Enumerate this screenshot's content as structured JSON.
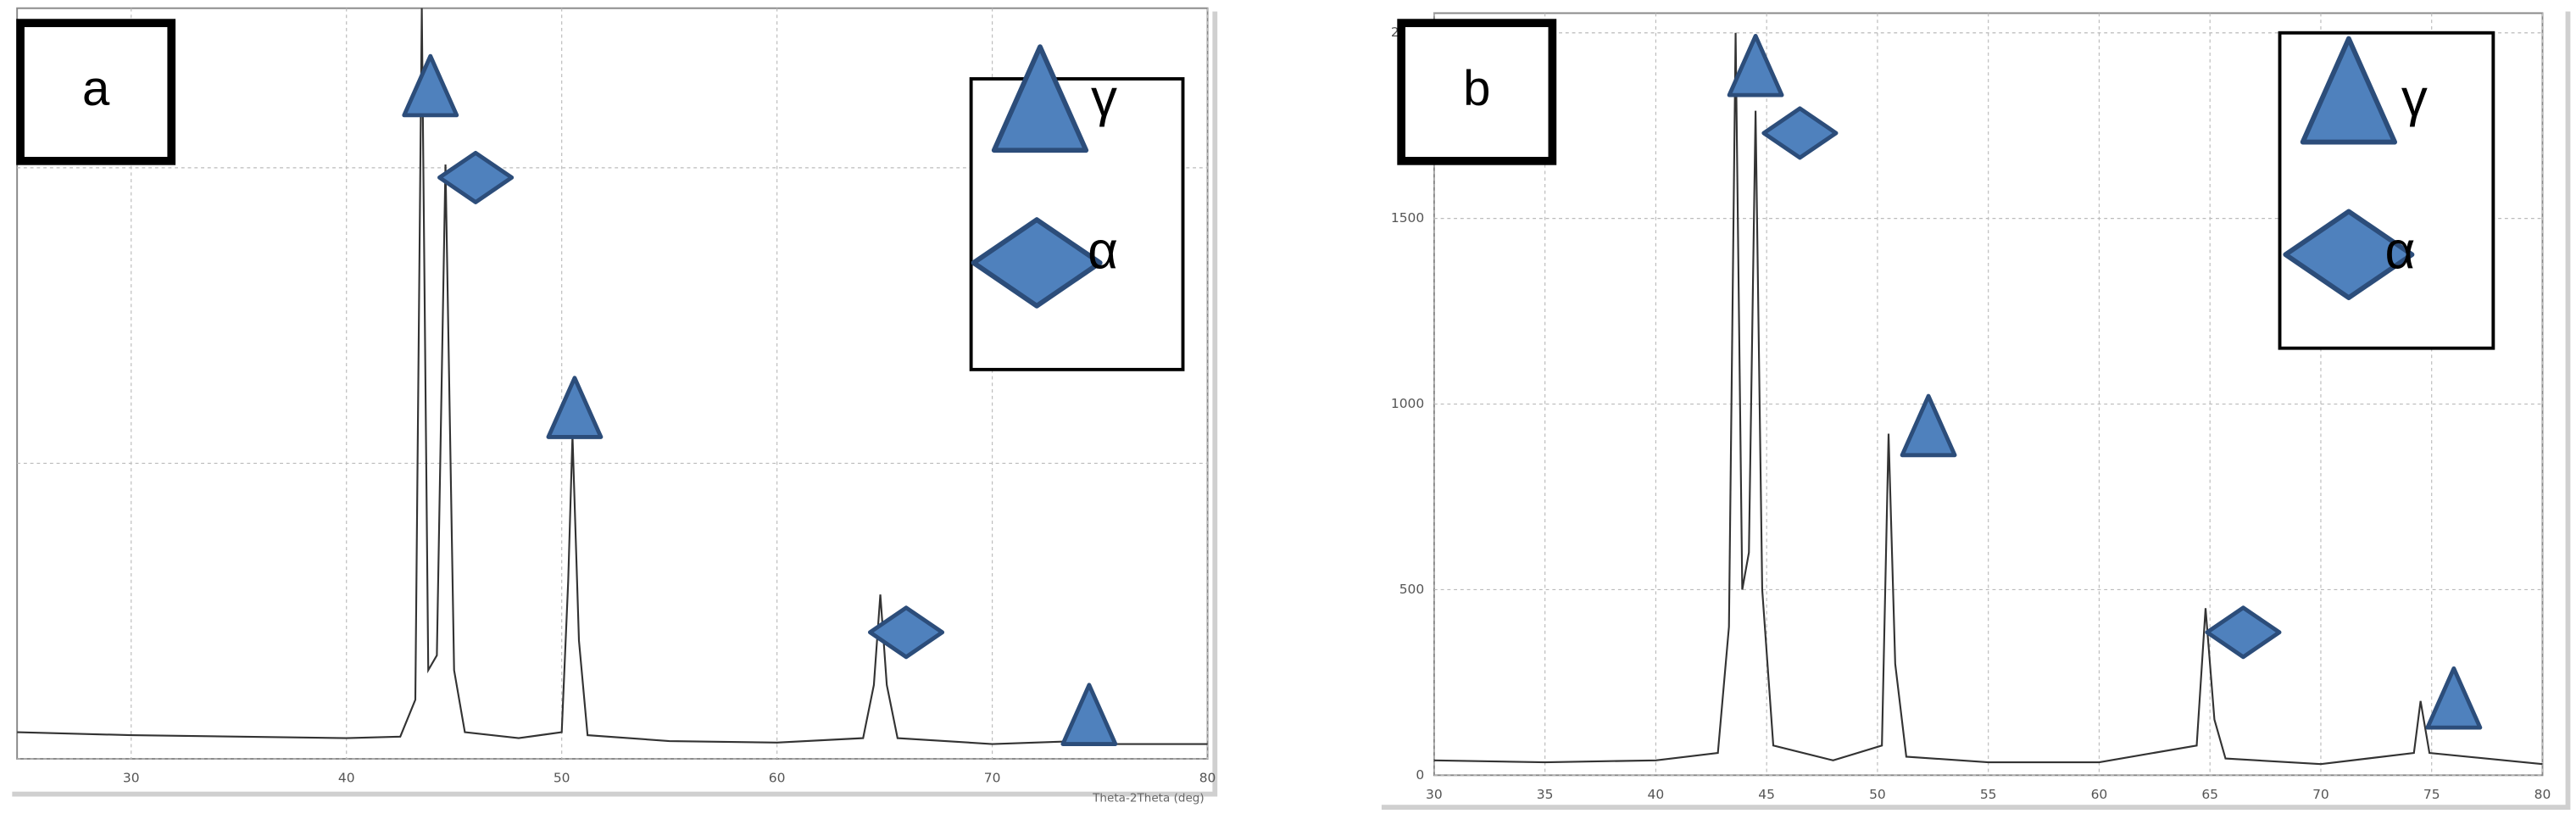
{
  "chart_data": [
    {
      "type": "line",
      "panel_label": "a",
      "xlabel": "Theta-2Theta (deg)",
      "xlim": [
        24.7,
        80
      ],
      "xticks": [
        30,
        40,
        50,
        60,
        70,
        80
      ],
      "ylim": [
        0,
        2540
      ],
      "yticks": [
        0,
        1000,
        2000
      ],
      "show_ytick_labels": false,
      "grid": true,
      "pattern": {
        "color": "#333333",
        "x": [
          24.7,
          30,
          35,
          40,
          42.5,
          43.2,
          43.5,
          43.8,
          44.2,
          44.6,
          45,
          45.5,
          48,
          50,
          50.3,
          50.5,
          50.8,
          51.2,
          55,
          60,
          64,
          64.5,
          64.8,
          65.1,
          65.6,
          70,
          74,
          74.5,
          75,
          80
        ],
        "values": [
          90,
          80,
          75,
          70,
          75,
          200,
          2540,
          300,
          350,
          2011,
          300,
          90,
          70,
          90,
          600,
          1094,
          400,
          80,
          60,
          55,
          70,
          250,
          556,
          250,
          70,
          50,
          60,
          150,
          50,
          50
        ]
      },
      "series": [
        {
          "name": "γ",
          "marker": "triangle",
          "color": "#4f81bd",
          "x": [
            43.9,
            50.6,
            74.5
          ],
          "values": [
            2278,
            1189,
            150
          ]
        },
        {
          "name": "α",
          "marker": "diamond",
          "color": "#4f81bd",
          "x": [
            46,
            66
          ],
          "values": [
            1967,
            428
          ]
        }
      ]
    },
    {
      "type": "line",
      "panel_label": "b",
      "xlim": [
        30,
        80
      ],
      "xticks": [
        30,
        35,
        40,
        45,
        50,
        55,
        60,
        65,
        70,
        75,
        80
      ],
      "ylim": [
        0,
        2000
      ],
      "yticks": [
        0,
        500,
        1000,
        1500,
        2000
      ],
      "show_ytick_labels": true,
      "grid": true,
      "pattern": {
        "color": "#333333",
        "x": [
          30,
          35,
          40,
          42.8,
          43.3,
          43.6,
          43.9,
          44.2,
          44.5,
          44.8,
          45.3,
          48,
          50.2,
          50.5,
          50.8,
          51.3,
          55,
          60,
          64.4,
          64.8,
          65.2,
          65.7,
          70,
          74.2,
          74.5,
          74.9,
          80
        ],
        "values": [
          40,
          35,
          40,
          60,
          400,
          2000,
          500,
          600,
          1790,
          500,
          80,
          40,
          80,
          920,
          300,
          50,
          35,
          35,
          80,
          450,
          150,
          45,
          30,
          60,
          200,
          60,
          30
        ]
      },
      "series": [
        {
          "name": "γ",
          "marker": "triangle",
          "color": "#4f81bd",
          "x": [
            44.5,
            52.3,
            76
          ],
          "values": [
            1912,
            942,
            208
          ]
        },
        {
          "name": "α",
          "marker": "diamond",
          "color": "#4f81bd",
          "x": [
            46.5,
            66.5
          ],
          "values": [
            1730,
            385
          ]
        }
      ]
    }
  ]
}
